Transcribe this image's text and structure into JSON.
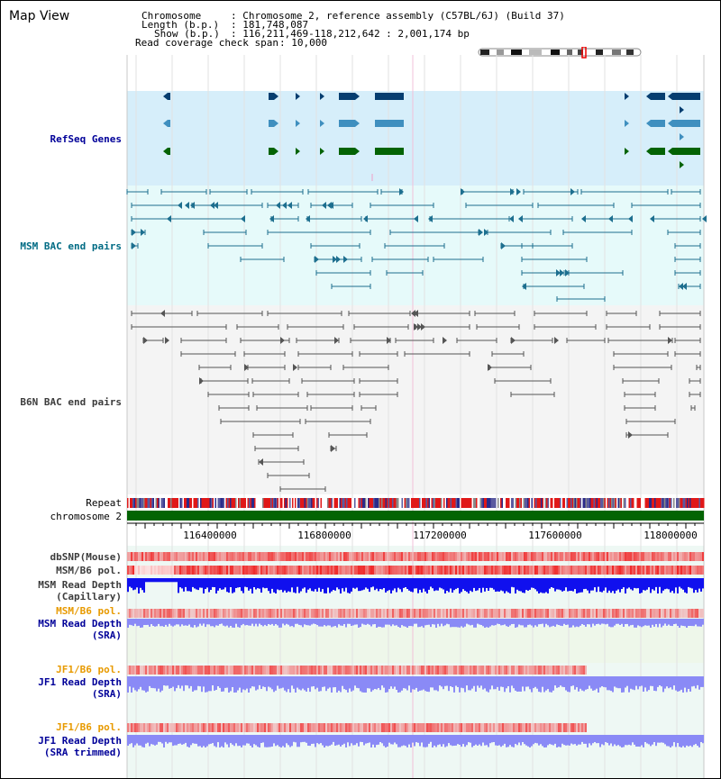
{
  "page": {
    "title": "Map View"
  },
  "info": {
    "chromosome_label": "Chromosome",
    "chromosome_value": ": Chromosome 2, reference assembly (C57BL/6J) (Build 37)",
    "length_label": "Length (b.p.)",
    "length_value": ": 181,748,087",
    "show_label": "Show (b.p.)",
    "show_value": ": 116,211,469-118,212,642 : 2,001,174 bp",
    "coverage_label": "Read coverage check span",
    "coverage_value": ": 10,000"
  },
  "tracks": {
    "refseq": "RefSeq Genes",
    "msm_bac": "MSM BAC end pairs",
    "b6n_bac": "B6N BAC end pairs",
    "repeat": "Repeat",
    "chromosome": "chromosome 2",
    "dbsnp": "dbSNP(Mouse)",
    "msm_pol": "MSM/B6 pol.",
    "msm_depth_cap_1": "MSM Read Depth",
    "msm_depth_cap_2": "(Capillary)",
    "msm_pol2": "MSM/B6 pol.",
    "msm_depth_sra_1": "MSM Read Depth",
    "msm_depth_sra_2": "(SRA)",
    "jf1_pol": "JF1/B6 pol.",
    "jf1_depth_sra_1": "JF1 Read Depth",
    "jf1_depth_sra_2": "(SRA)",
    "jf1_pol2": "JF1/B6 pol.",
    "jf1_depth_trim_1": "JF1 Read Depth",
    "jf1_depth_trim_2": "(SRA trimmed)"
  },
  "axis": {
    "ticks": [
      "116400000",
      "116800000",
      "117200000",
      "117600000",
      "118000000"
    ]
  },
  "colors": {
    "refseq_bg": "#d6eefa",
    "msm_bg": "#e6fafa",
    "b6n_bg": "#f4f4f4",
    "gene_dark": "#063e70",
    "gene_mid": "#3f8fbf",
    "gene_green": "#046304",
    "bac_msm": "#1d6f8f",
    "bac_b6n": "#555555",
    "chromosome": "#036403",
    "depth_blue": "#1010ee",
    "depth_light": "#8a8af6",
    "pol_red": "#e83030",
    "label_blue": "#000099",
    "label_teal": "#006b84",
    "label_grey": "#3c3c3c",
    "label_orange": "#e89a00"
  }
}
